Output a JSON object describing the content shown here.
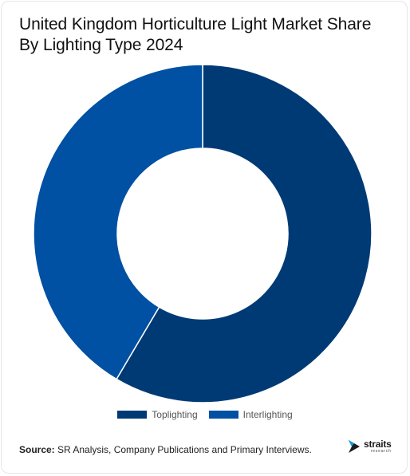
{
  "title": "United Kingdom Horticulture Light Market Share By Lighting Type 2024",
  "source": {
    "label": "Source:",
    "text": " SR Analysis, Company Publications and Primary Interviews."
  },
  "logo": {
    "word": "straits",
    "sub": "research",
    "icon": "straits-arrow-logo-icon"
  },
  "colors": {
    "toplighting": "#003A75",
    "interlighting": "#0050A3",
    "separator": "#ffffff"
  },
  "chart_data": {
    "type": "pie",
    "variant": "donut",
    "title": "United Kingdom Horticulture Light Market Share By Lighting Type 2024",
    "categories": [
      "Toplighting",
      "Interlighting"
    ],
    "values": [
      58.5,
      41.5
    ],
    "unit": "%",
    "start_angle_deg": 0,
    "direction": "clockwise",
    "legend_position": "bottom-center",
    "data_labels": false
  }
}
